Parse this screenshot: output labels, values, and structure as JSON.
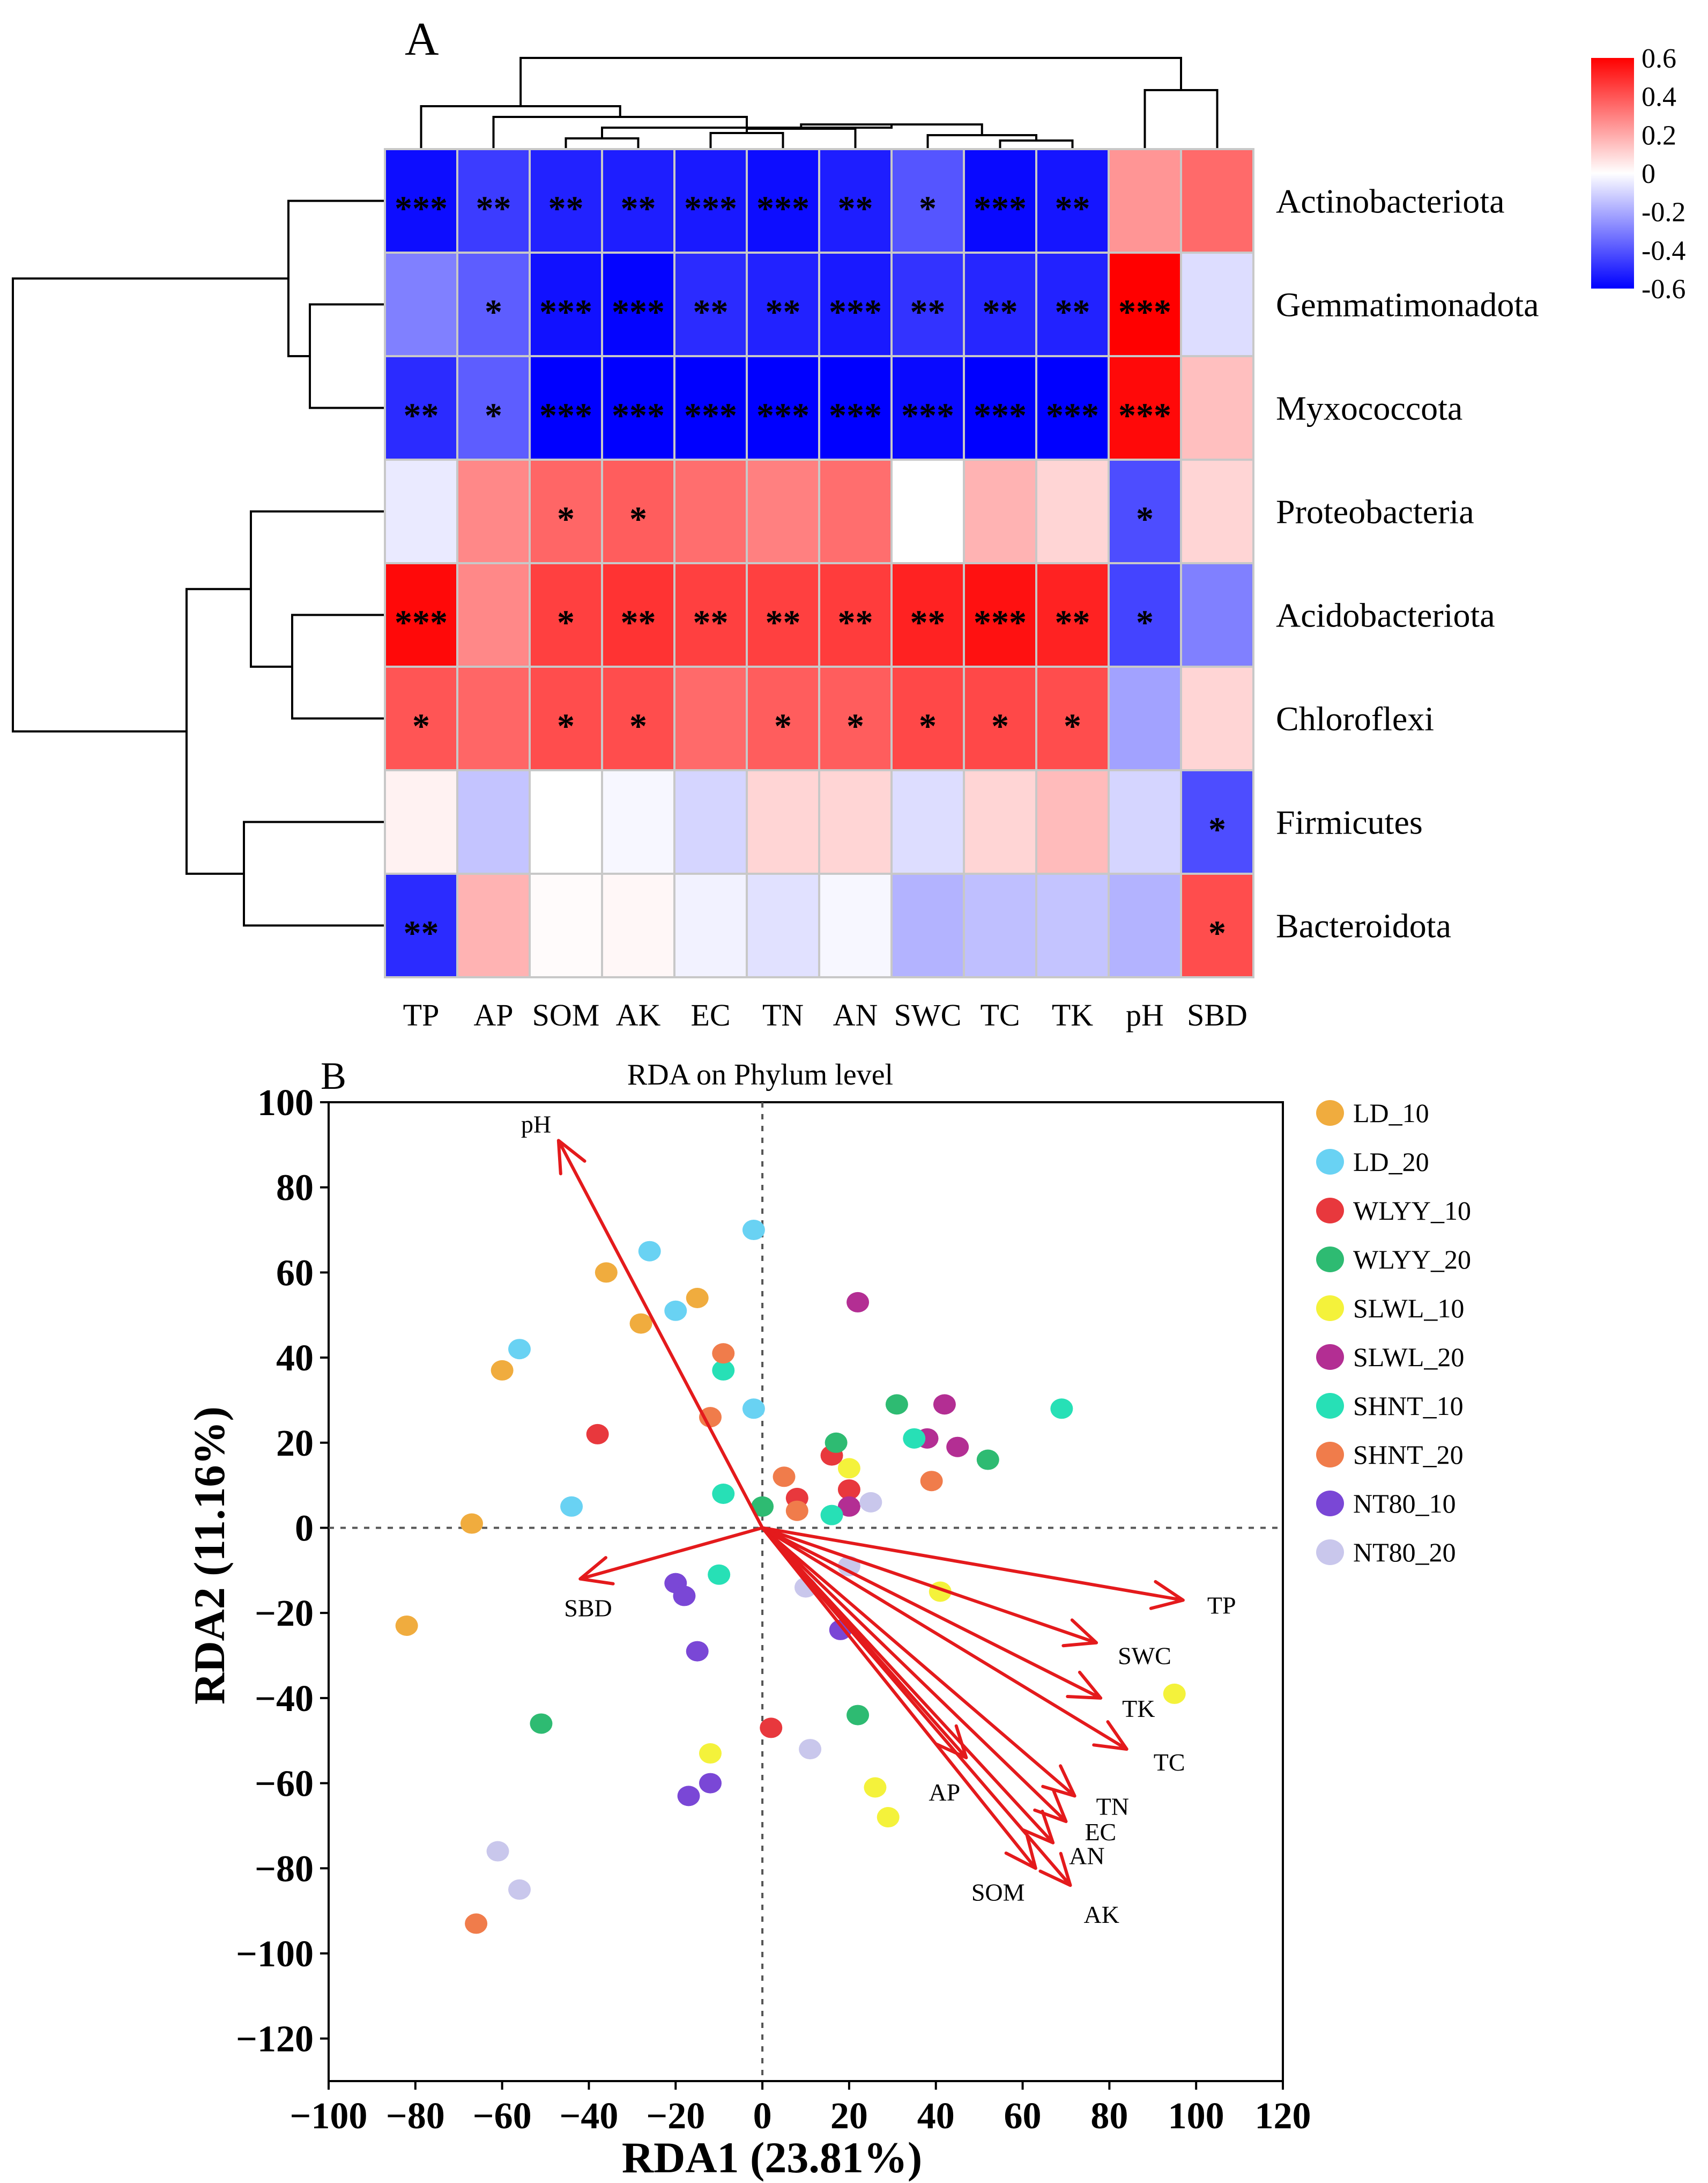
{
  "colors": {
    "negative": "#0000ff",
    "neutral": "#ffffff",
    "positive": "#ff0000",
    "arrow": "#e41a1c",
    "grid": "#c8c8c8"
  },
  "chart_data": [
    {
      "type": "heatmap",
      "panel": "A",
      "title": "",
      "columns": [
        "TP",
        "AP",
        "SOM",
        "AK",
        "EC",
        "TN",
        "AN",
        "SWC",
        "TC",
        "TK",
        "pH",
        "SBD"
      ],
      "rows": [
        "Actinobacteriota",
        "Gemmatimonadota",
        "Myxococcota",
        "Proteobacteria",
        "Acidobacteriota",
        "Chloroflexi",
        "Firmicutes",
        "Bacteroidota"
      ],
      "values": [
        [
          -0.57,
          -0.46,
          -0.52,
          -0.53,
          -0.54,
          -0.57,
          -0.53,
          -0.4,
          -0.58,
          -0.55,
          0.25,
          0.35
        ],
        [
          -0.3,
          -0.38,
          -0.56,
          -0.59,
          -0.5,
          -0.52,
          -0.54,
          -0.48,
          -0.51,
          -0.52,
          0.62,
          -0.08
        ],
        [
          -0.5,
          -0.38,
          -0.62,
          -0.65,
          -0.62,
          -0.62,
          -0.62,
          -0.58,
          -0.6,
          -0.6,
          0.58,
          0.15
        ],
        [
          -0.05,
          0.28,
          0.36,
          0.38,
          0.34,
          0.3,
          0.34,
          0.0,
          0.18,
          0.1,
          -0.42,
          0.1
        ],
        [
          0.58,
          0.28,
          0.45,
          0.48,
          0.45,
          0.45,
          0.46,
          0.52,
          0.56,
          0.52,
          -0.44,
          -0.3
        ],
        [
          0.4,
          0.36,
          0.42,
          0.42,
          0.35,
          0.38,
          0.38,
          0.43,
          0.43,
          0.42,
          -0.22,
          0.1
        ],
        [
          0.03,
          -0.14,
          0.0,
          -0.02,
          -0.1,
          0.1,
          0.1,
          -0.08,
          0.1,
          0.16,
          -0.1,
          -0.42
        ],
        [
          -0.5,
          0.18,
          0.01,
          0.02,
          -0.03,
          -0.07,
          -0.02,
          -0.18,
          -0.15,
          -0.14,
          -0.18,
          0.42
        ]
      ],
      "significance": [
        [
          "***",
          "**",
          "**",
          "**",
          "***",
          "***",
          "**",
          "*",
          "***",
          "**",
          "",
          ""
        ],
        [
          "",
          "*",
          "***",
          "***",
          "**",
          "**",
          "***",
          "**",
          "**",
          "**",
          "***",
          ""
        ],
        [
          "**",
          "*",
          "***",
          "***",
          "***",
          "***",
          "***",
          "***",
          "***",
          "***",
          "***",
          ""
        ],
        [
          "",
          "",
          "*",
          "*",
          "",
          "",
          "",
          "",
          "",
          "",
          "*",
          ""
        ],
        [
          "***",
          "",
          "*",
          "**",
          "**",
          "**",
          "**",
          "**",
          "***",
          "**",
          "*",
          ""
        ],
        [
          "*",
          "",
          "*",
          "*",
          "",
          "*",
          "*",
          "*",
          "*",
          "*",
          "",
          ""
        ],
        [
          "",
          "",
          "",
          "",
          "",
          "",
          "",
          "",
          "",
          "",
          "",
          "*"
        ],
        [
          "**",
          "",
          "",
          "",
          "",
          "",
          "",
          "",
          "",
          "",
          "",
          "*"
        ]
      ],
      "colorbar": {
        "range": [
          -0.6,
          0.6
        ],
        "ticks": [
          "0.6",
          "0.4",
          "0.2",
          "0",
          "-0.2",
          "-0.4",
          "-0.6"
        ]
      },
      "row_dendrogram": "Actinobacteriota,(Gemmatimonadota,Myxococcota) | Proteobacteria,(Acidobacteriota,Chloroflexi) | Firmicutes,Bacteroidota",
      "column_dendrogram": "(TP,(AP,(SOM,AK,EC,TN,AN,SWC,TC,TK))),(pH,SBD)"
    },
    {
      "type": "scatter",
      "panel": "B",
      "title": "RDA on Phylum level",
      "xlabel": "RDA1 (23.81%)",
      "ylabel": "RDA2 (11.16%)",
      "xlim": [
        -100,
        120
      ],
      "ylim": [
        -130,
        100
      ],
      "xticks": [
        "−100",
        "−80",
        "−60",
        "−40",
        "−20",
        "0",
        "20",
        "40",
        "60",
        "80",
        "100",
        "120"
      ],
      "yticks": [
        "100",
        "80",
        "60",
        "40",
        "20",
        "0",
        "−20",
        "−40",
        "−60",
        "−80",
        "−100",
        "−120"
      ],
      "arrows": [
        {
          "name": "pH",
          "x": -47,
          "y": 91
        },
        {
          "name": "SBD",
          "x": -42,
          "y": -12
        },
        {
          "name": "TP",
          "x": 97,
          "y": -17
        },
        {
          "name": "SWC",
          "x": 77,
          "y": -27
        },
        {
          "name": "TK",
          "x": 78,
          "y": -40
        },
        {
          "name": "TC",
          "x": 84,
          "y": -52
        },
        {
          "name": "TN",
          "x": 72,
          "y": -63
        },
        {
          "name": "EC",
          "x": 70,
          "y": -69
        },
        {
          "name": "AN",
          "x": 67,
          "y": -74
        },
        {
          "name": "SOM",
          "x": 63,
          "y": -80
        },
        {
          "name": "AK",
          "x": 71,
          "y": -84
        },
        {
          "name": "AP",
          "x": 47,
          "y": -54
        }
      ],
      "series": [
        {
          "name": "LD_10",
          "color": "#f0ac3e",
          "points": [
            [
              -36,
              60
            ],
            [
              -28,
              48
            ],
            [
              -15,
              54
            ],
            [
              -60,
              37
            ],
            [
              -67,
              1
            ],
            [
              -82,
              -23
            ]
          ]
        },
        {
          "name": "LD_20",
          "color": "#69d2f3",
          "points": [
            [
              -26,
              65
            ],
            [
              -2,
              70
            ],
            [
              -20,
              51
            ],
            [
              -56,
              42
            ],
            [
              -44,
              5
            ],
            [
              -2,
              28
            ]
          ]
        },
        {
          "name": "WLYY_10",
          "color": "#e8383d",
          "points": [
            [
              -38,
              22
            ],
            [
              16,
              17
            ],
            [
              20,
              9
            ],
            [
              8,
              7
            ],
            [
              2,
              -47
            ]
          ]
        },
        {
          "name": "WLYY_20",
          "color": "#2ebb72",
          "points": [
            [
              31,
              29
            ],
            [
              17,
              20
            ],
            [
              52,
              16
            ],
            [
              0,
              5
            ],
            [
              22,
              -44
            ],
            [
              -51,
              -46
            ]
          ]
        },
        {
          "name": "SLWL_10",
          "color": "#f4f23b",
          "points": [
            [
              20,
              14
            ],
            [
              41,
              -15
            ],
            [
              95,
              -39
            ],
            [
              -12,
              -53
            ],
            [
              26,
              -61
            ],
            [
              29,
              -68
            ]
          ]
        },
        {
          "name": "SLWL_20",
          "color": "#b32e93",
          "points": [
            [
              22,
              53
            ],
            [
              42,
              29
            ],
            [
              38,
              21
            ],
            [
              45,
              19
            ],
            [
              20,
              5
            ]
          ]
        },
        {
          "name": "SHNT_10",
          "color": "#27e0b6",
          "points": [
            [
              -9,
              37
            ],
            [
              35,
              21
            ],
            [
              69,
              28
            ],
            [
              -9,
              8
            ],
            [
              16,
              3
            ],
            [
              -10,
              -11
            ]
          ]
        },
        {
          "name": "SHNT_20",
          "color": "#f07c4b",
          "points": [
            [
              -9,
              41
            ],
            [
              -12,
              26
            ],
            [
              5,
              12
            ],
            [
              8,
              4
            ],
            [
              39,
              11
            ],
            [
              -66,
              -93
            ]
          ]
        },
        {
          "name": "NT80_10",
          "color": "#7a47d6",
          "points": [
            [
              -20,
              -13
            ],
            [
              -18,
              -16
            ],
            [
              -15,
              -29
            ],
            [
              18,
              -24
            ],
            [
              -12,
              -60
            ],
            [
              -17,
              -63
            ]
          ]
        },
        {
          "name": "NT80_20",
          "color": "#c9c7ec",
          "points": [
            [
              25,
              6
            ],
            [
              10,
              -14
            ],
            [
              20,
              -9
            ],
            [
              11,
              -52
            ],
            [
              -61,
              -76
            ],
            [
              -56,
              -85
            ]
          ]
        }
      ]
    }
  ]
}
